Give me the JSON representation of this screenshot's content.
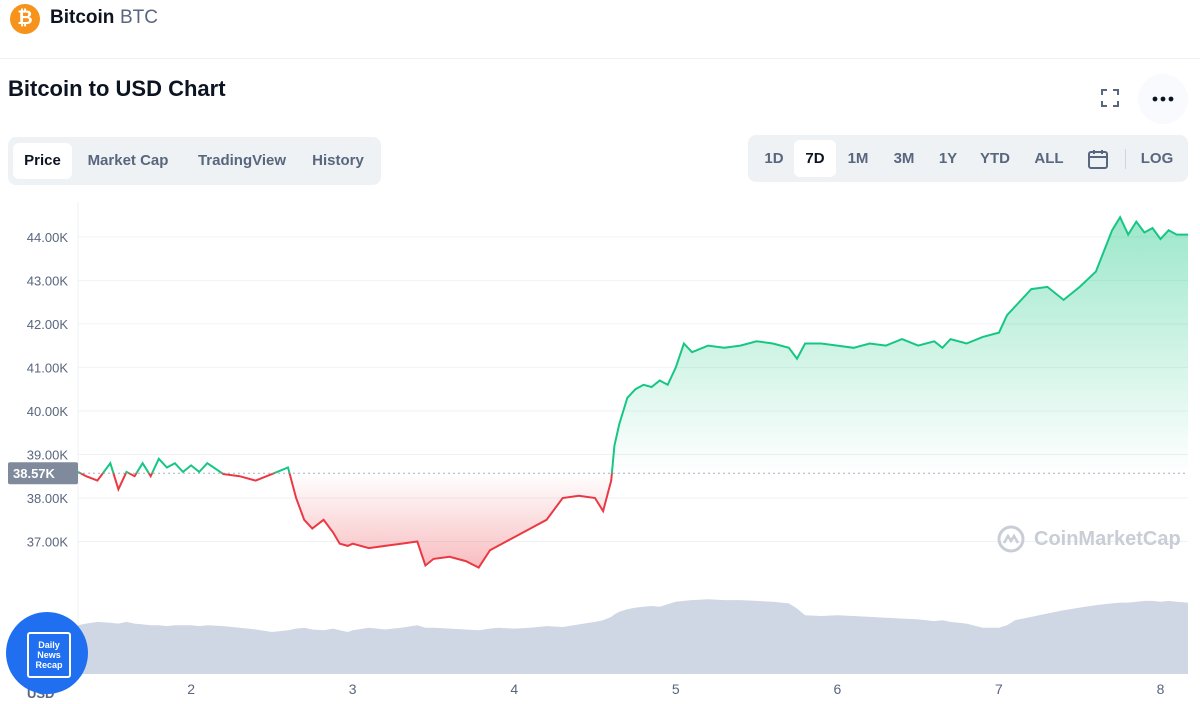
{
  "coin": {
    "logo_glyph": "₿",
    "name": "Bitcoin",
    "symbol": "BTC",
    "brand_color": "#f7931a"
  },
  "chart_title": "Bitcoin to USD Chart",
  "tabs": [
    {
      "label": "Price",
      "active": true
    },
    {
      "label": "Market Cap",
      "active": false
    },
    {
      "label": "TradingView",
      "active": false
    },
    {
      "label": "History",
      "active": false
    }
  ],
  "ranges": [
    {
      "label": "1D",
      "active": false
    },
    {
      "label": "7D",
      "active": true
    },
    {
      "label": "1M",
      "active": false
    },
    {
      "label": "3M",
      "active": false
    },
    {
      "label": "1Y",
      "active": false
    },
    {
      "label": "YTD",
      "active": false
    },
    {
      "label": "ALL",
      "active": false
    },
    {
      "label": "LOG",
      "active": false
    }
  ],
  "icons": {
    "fullscreen": "fullscreen-icon",
    "more": "more-horizontal-icon",
    "calendar": "calendar-icon"
  },
  "watermark": "CoinMarketCap",
  "news_badge": {
    "line1": "Daily",
    "line2": "News",
    "line3": "Recap"
  },
  "chart_data": {
    "type": "area",
    "baseline": 38570,
    "baseline_label": "38.57K",
    "currency_label": "USD",
    "colors": {
      "up": "#16c784",
      "down": "#ea3943",
      "volume": "#cfd6e4"
    },
    "ylim": [
      36300,
      44800
    ],
    "y_ticks": [
      {
        "value": 37000,
        "label": "37.00K"
      },
      {
        "value": 38000,
        "label": "38.00K"
      },
      {
        "value": 39000,
        "label": "39.00K"
      },
      {
        "value": 40000,
        "label": "40.00K"
      },
      {
        "value": 41000,
        "label": "41.00K"
      },
      {
        "value": 42000,
        "label": "42.00K"
      },
      {
        "value": 43000,
        "label": "43.00K"
      },
      {
        "value": 44000,
        "label": "44.00K"
      }
    ],
    "xlim": [
      1.3,
      8.17
    ],
    "x_ticks": [
      {
        "value": 2,
        "label": "2"
      },
      {
        "value": 3,
        "label": "3"
      },
      {
        "value": 4,
        "label": "4"
      },
      {
        "value": 5,
        "label": "5"
      },
      {
        "value": 6,
        "label": "6"
      },
      {
        "value": 7,
        "label": "7"
      },
      {
        "value": 8,
        "label": "8"
      }
    ],
    "x": [
      1.3,
      1.35,
      1.42,
      1.5,
      1.55,
      1.6,
      1.65,
      1.7,
      1.75,
      1.8,
      1.85,
      1.9,
      1.95,
      2.0,
      2.05,
      2.1,
      2.2,
      2.3,
      2.4,
      2.5,
      2.6,
      2.65,
      2.7,
      2.75,
      2.82,
      2.88,
      2.92,
      2.97,
      3.0,
      3.1,
      3.2,
      3.3,
      3.4,
      3.45,
      3.5,
      3.6,
      3.7,
      3.78,
      3.85,
      3.9,
      4.0,
      4.1,
      4.2,
      4.3,
      4.4,
      4.5,
      4.55,
      4.6,
      4.62,
      4.65,
      4.7,
      4.75,
      4.8,
      4.85,
      4.9,
      4.95,
      5.0,
      5.05,
      5.1,
      5.2,
      5.3,
      5.4,
      5.5,
      5.6,
      5.7,
      5.75,
      5.8,
      5.9,
      6.0,
      6.1,
      6.2,
      6.3,
      6.4,
      6.5,
      6.6,
      6.65,
      6.7,
      6.8,
      6.9,
      7.0,
      7.05,
      7.1,
      7.2,
      7.3,
      7.4,
      7.5,
      7.6,
      7.7,
      7.75,
      7.8,
      7.85,
      7.9,
      7.95,
      8.0,
      8.05,
      8.1,
      8.17
    ],
    "y": [
      38600,
      38500,
      38400,
      38800,
      38200,
      38600,
      38500,
      38800,
      38500,
      38900,
      38700,
      38800,
      38600,
      38750,
      38600,
      38800,
      38550,
      38500,
      38400,
      38550,
      38700,
      38000,
      37500,
      37300,
      37500,
      37200,
      36950,
      36900,
      36950,
      36850,
      36900,
      36950,
      37000,
      36450,
      36600,
      36650,
      36550,
      36400,
      36800,
      36900,
      37100,
      37300,
      37500,
      38000,
      38050,
      38000,
      37700,
      38400,
      39200,
      39700,
      40300,
      40500,
      40600,
      40550,
      40700,
      40600,
      41000,
      41550,
      41350,
      41500,
      41450,
      41500,
      41600,
      41550,
      41450,
      41200,
      41550,
      41550,
      41500,
      41450,
      41550,
      41500,
      41650,
      41500,
      41600,
      41450,
      41650,
      41550,
      41700,
      41800,
      42200,
      42400,
      42800,
      42850,
      42550,
      42850,
      43200,
      44150,
      44450,
      44050,
      44350,
      44100,
      44200,
      43950,
      44150,
      44050,
      44050
    ],
    "volume": [
      0.58,
      0.6,
      0.62,
      0.61,
      0.6,
      0.62,
      0.6,
      0.59,
      0.58,
      0.58,
      0.57,
      0.58,
      0.58,
      0.58,
      0.57,
      0.58,
      0.57,
      0.55,
      0.53,
      0.5,
      0.52,
      0.54,
      0.55,
      0.53,
      0.52,
      0.54,
      0.52,
      0.5,
      0.52,
      0.55,
      0.53,
      0.55,
      0.58,
      0.55,
      0.55,
      0.54,
      0.53,
      0.52,
      0.54,
      0.55,
      0.54,
      0.55,
      0.57,
      0.56,
      0.59,
      0.62,
      0.64,
      0.68,
      0.71,
      0.74,
      0.77,
      0.79,
      0.8,
      0.81,
      0.8,
      0.83,
      0.86,
      0.87,
      0.88,
      0.89,
      0.88,
      0.88,
      0.87,
      0.86,
      0.84,
      0.78,
      0.7,
      0.69,
      0.7,
      0.69,
      0.68,
      0.67,
      0.66,
      0.65,
      0.63,
      0.64,
      0.62,
      0.6,
      0.55,
      0.55,
      0.58,
      0.64,
      0.68,
      0.72,
      0.76,
      0.79,
      0.82,
      0.84,
      0.85,
      0.85,
      0.86,
      0.87,
      0.87,
      0.86,
      0.87,
      0.86,
      0.85
    ]
  }
}
